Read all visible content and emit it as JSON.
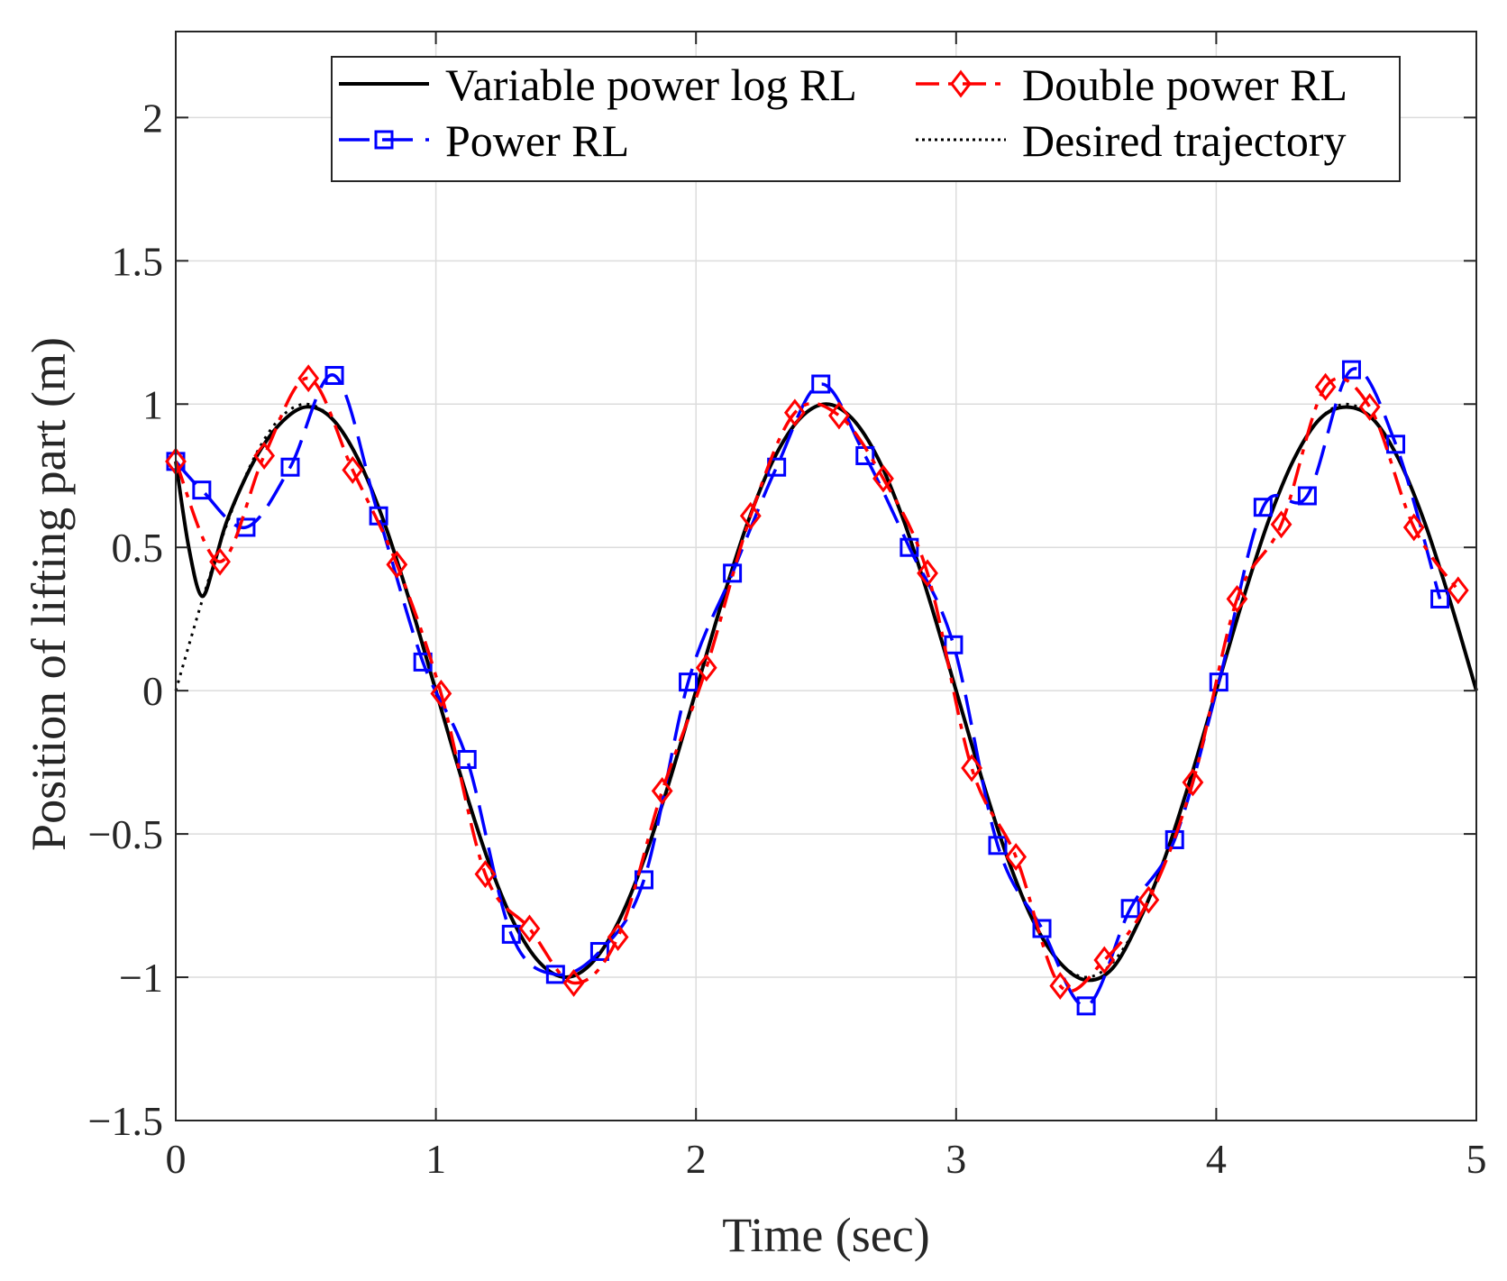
{
  "chart_data": {
    "type": "line",
    "title": "",
    "xlabel": "Time (sec)",
    "ylabel": "Position of lifting part (m)",
    "xlim": [
      0,
      5
    ],
    "ylim": [
      -1.5,
      2.3
    ],
    "grid": true,
    "legend_position": "top-right",
    "x_ticks": [
      0,
      1,
      2,
      3,
      4,
      5
    ],
    "x_tick_labels": [
      "0",
      "1",
      "2",
      "3",
      "4",
      "5"
    ],
    "y_ticks": [
      -1.5,
      -1,
      -0.5,
      0,
      0.5,
      1,
      1.5,
      2
    ],
    "y_tick_labels": [
      "−1.5",
      "−1",
      "−0.5",
      "0",
      "0.5",
      "1",
      "1.5",
      "2"
    ],
    "series": [
      {
        "name": "Variable power log RL",
        "color": "#000000",
        "style": "solid",
        "marker": "none",
        "x": [
          0,
          0.05,
          0.1,
          0.15,
          0.2,
          0.3,
          0.4,
          0.5,
          0.6,
          0.7,
          0.8,
          0.9,
          1.0,
          1.1,
          1.2,
          1.3,
          1.4,
          1.5,
          1.6,
          1.7,
          1.8,
          1.9,
          2.0,
          2.1,
          2.2,
          2.3,
          2.4,
          2.5,
          2.6,
          2.7,
          2.8,
          2.9,
          3.0,
          3.1,
          3.2,
          3.3,
          3.4,
          3.5,
          3.6,
          3.7,
          3.8,
          3.9,
          4.0,
          4.1,
          4.2,
          4.3,
          4.4,
          4.5,
          4.6,
          4.7,
          4.8,
          4.9,
          5.0
        ],
        "y": [
          0.8,
          0.5,
          0.33,
          0.45,
          0.6,
          0.8,
          0.93,
          0.99,
          0.95,
          0.81,
          0.59,
          0.31,
          0.0,
          -0.31,
          -0.59,
          -0.81,
          -0.95,
          -1.0,
          -0.95,
          -0.81,
          -0.59,
          -0.31,
          0.0,
          0.31,
          0.59,
          0.81,
          0.95,
          1.0,
          0.95,
          0.81,
          0.59,
          0.31,
          0.0,
          -0.31,
          -0.59,
          -0.81,
          -0.95,
          -1.01,
          -0.97,
          -0.81,
          -0.59,
          -0.31,
          0.0,
          0.31,
          0.59,
          0.81,
          0.95,
          0.99,
          0.95,
          0.81,
          0.59,
          0.31,
          0.0
        ]
      },
      {
        "name": "Double power RL",
        "color": "#ff0000",
        "style": "dashdot",
        "marker": "diamond",
        "x": [
          0,
          0.17,
          0.34,
          0.51,
          0.68,
          0.85,
          1.02,
          1.19,
          1.36,
          1.53,
          1.7,
          1.87,
          2.04,
          2.21,
          2.38,
          2.55,
          2.72,
          2.89,
          3.06,
          3.23,
          3.4,
          3.57,
          3.74,
          3.91,
          4.08,
          4.25,
          4.42,
          4.59,
          4.76,
          4.93
        ],
        "y": [
          0.8,
          0.45,
          0.82,
          1.09,
          0.77,
          0.44,
          -0.01,
          -0.64,
          -0.83,
          -1.02,
          -0.86,
          -0.35,
          0.08,
          0.61,
          0.97,
          0.96,
          0.74,
          0.41,
          -0.27,
          -0.58,
          -1.03,
          -0.94,
          -0.73,
          -0.32,
          0.32,
          0.58,
          1.06,
          0.99,
          0.57,
          0.35
        ]
      },
      {
        "name": "Power RL",
        "color": "#0000ff",
        "style": "dashed",
        "marker": "square",
        "x": [
          0,
          0.1,
          0.27,
          0.44,
          0.61,
          0.78,
          0.95,
          1.12,
          1.29,
          1.46,
          1.63,
          1.8,
          1.97,
          2.14,
          2.31,
          2.48,
          2.65,
          2.82,
          2.99,
          3.16,
          3.33,
          3.5,
          3.67,
          3.84,
          4.01,
          4.18,
          4.35,
          4.52,
          4.69,
          4.86
        ],
        "y": [
          0.8,
          0.7,
          0.57,
          0.78,
          1.1,
          0.61,
          0.1,
          -0.24,
          -0.85,
          -0.99,
          -0.91,
          -0.66,
          0.03,
          0.41,
          0.78,
          1.07,
          0.82,
          0.5,
          0.16,
          -0.54,
          -0.83,
          -1.1,
          -0.76,
          -0.52,
          0.03,
          0.64,
          0.68,
          1.12,
          0.86,
          0.32
        ]
      },
      {
        "name": "Desired trajectory",
        "color": "#000000",
        "style": "dotted",
        "marker": "none",
        "x": [
          0,
          0.1,
          0.2,
          0.3,
          0.4,
          0.5,
          0.6,
          0.7,
          0.8,
          0.9,
          1.0,
          1.1,
          1.2,
          1.3,
          1.4,
          1.5,
          1.6,
          1.7,
          1.8,
          1.9,
          2.0,
          2.1,
          2.2,
          2.3,
          2.4,
          2.5,
          2.6,
          2.7,
          2.8,
          2.9,
          3.0,
          3.1,
          3.2,
          3.3,
          3.4,
          3.5,
          3.6,
          3.7,
          3.8,
          3.9,
          4.0,
          4.1,
          4.2,
          4.3,
          4.4,
          4.5,
          4.6,
          4.7,
          4.8,
          4.9,
          5.0
        ],
        "y": [
          0.0,
          0.31,
          0.59,
          0.81,
          0.95,
          1.0,
          0.95,
          0.81,
          0.59,
          0.31,
          0.0,
          -0.31,
          -0.59,
          -0.81,
          -0.95,
          -1.0,
          -0.95,
          -0.81,
          -0.59,
          -0.31,
          0.0,
          0.31,
          0.59,
          0.81,
          0.95,
          1.0,
          0.95,
          0.81,
          0.59,
          0.31,
          0.0,
          -0.31,
          -0.59,
          -0.81,
          -0.95,
          -1.0,
          -0.95,
          -0.81,
          -0.59,
          -0.31,
          0.0,
          0.31,
          0.59,
          0.81,
          0.95,
          1.0,
          0.95,
          0.81,
          0.59,
          0.31,
          0.0
        ]
      }
    ],
    "legend": [
      {
        "label": "Variable power log RL",
        "series": 0
      },
      {
        "label": "Double power RL",
        "series": 1
      },
      {
        "label": "Power RL",
        "series": 2
      },
      {
        "label": "Desired trajectory",
        "series": 3
      }
    ]
  }
}
